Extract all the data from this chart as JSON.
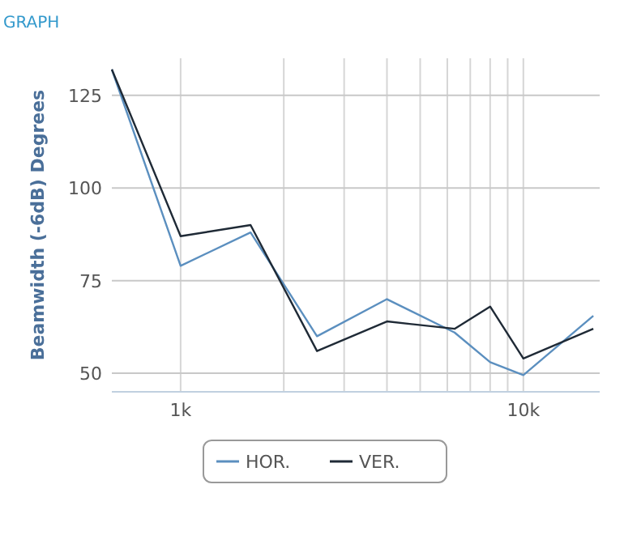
{
  "chart_data": {
    "type": "line",
    "title": "GRAPH",
    "ylabel": "Beamwidth (-6dB) Degrees",
    "log": "x",
    "x": [
      630,
      1000,
      1600,
      2500,
      4000,
      6300,
      8000,
      10000,
      16000
    ],
    "xlim": [
      630,
      16700
    ],
    "xticks": [
      {
        "value": 1000,
        "label": "1k"
      },
      {
        "value": 2000,
        "label": null
      },
      {
        "value": 3000,
        "label": null
      },
      {
        "value": 4000,
        "label": null
      },
      {
        "value": 5000,
        "label": null
      },
      {
        "value": 6000,
        "label": null
      },
      {
        "value": 7000,
        "label": null
      },
      {
        "value": 8000,
        "label": null
      },
      {
        "value": 9000,
        "label": null
      },
      {
        "value": 10000,
        "label": "10k"
      }
    ],
    "ylim": [
      45,
      135
    ],
    "yticks": [
      50,
      75,
      100,
      125
    ],
    "grid": true,
    "legend": "bottom",
    "series": [
      {
        "name": "HOR.",
        "color": "#5b8fbf",
        "values": [
          132,
          79,
          88,
          60,
          70,
          61,
          53,
          49.5,
          65.5
        ]
      },
      {
        "name": "VER.",
        "color": "#1f2a36",
        "values": [
          132,
          87,
          90,
          56,
          64,
          62,
          68,
          54,
          62
        ]
      }
    ]
  }
}
